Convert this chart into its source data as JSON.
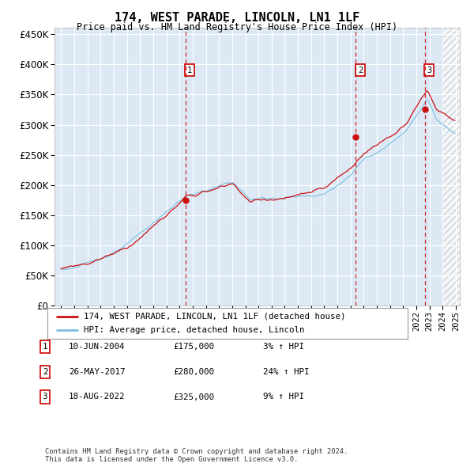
{
  "title": "174, WEST PARADE, LINCOLN, LN1 1LF",
  "subtitle": "Price paid vs. HM Land Registry's House Price Index (HPI)",
  "ylim": [
    0,
    460000
  ],
  "yticks": [
    0,
    50000,
    100000,
    150000,
    200000,
    250000,
    300000,
    350000,
    400000,
    450000
  ],
  "xlim_start": 1994.5,
  "xlim_end": 2025.3,
  "bg_color": "#dce9f5",
  "hpi_color": "#7bbde0",
  "price_color": "#cc1111",
  "transactions": [
    {
      "date_year": 2004.44,
      "price": 175000,
      "label": "1"
    },
    {
      "date_year": 2017.4,
      "price": 280000,
      "label": "2"
    },
    {
      "date_year": 2022.63,
      "price": 325000,
      "label": "3"
    }
  ],
  "transaction_table": [
    {
      "num": "1",
      "date": "10-JUN-2004",
      "price": "£175,000",
      "note": "3% ↑ HPI"
    },
    {
      "num": "2",
      "date": "26-MAY-2017",
      "price": "£280,000",
      "note": "24% ↑ HPI"
    },
    {
      "num": "3",
      "date": "18-AUG-2022",
      "price": "£325,000",
      "note": "9% ↑ HPI"
    }
  ],
  "legend_entries": [
    "174, WEST PARADE, LINCOLN, LN1 1LF (detached house)",
    "HPI: Average price, detached house, Lincoln"
  ],
  "footer": "Contains HM Land Registry data © Crown copyright and database right 2024.\nThis data is licensed under the Open Government Licence v3.0."
}
